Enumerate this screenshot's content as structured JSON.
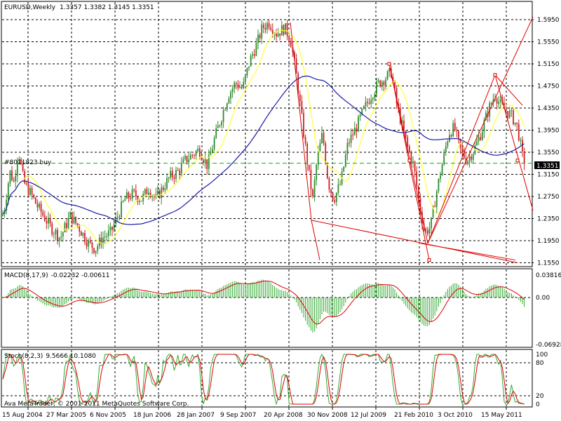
{
  "main": {
    "symbol": "EURUSD,Weekly",
    "ohlc": "1.3357 1.3382 1.3145 1.3351",
    "order_label": "#8011823 buy",
    "price_tag": "1.3351",
    "price_axis": [
      "1.5950",
      "1.5550",
      "1.5150",
      "1.4750",
      "1.4350",
      "1.3950",
      "1.3550",
      "1.3150",
      "1.2750",
      "1.2350",
      "1.1950",
      "1.1550"
    ]
  },
  "macd": {
    "title": "MACD(8,17,9)",
    "values": "-0.02232 -0.00611",
    "axis": [
      "0.03816",
      "0.00",
      "-0.06928"
    ]
  },
  "stoch": {
    "title": "Stoch(8,2,3)",
    "values": "9.5666 10.1080",
    "axis": [
      "100",
      "80",
      "20",
      "0"
    ]
  },
  "footer": {
    "copyright": "Ava MetaTrader, © 2001-2011 MetaQuotes Software Corp."
  },
  "time_axis": [
    "15 Aug 2004",
    "27 Mar 2005",
    "6 Nov 2005",
    "18 Jun 2006",
    "28 Jan 2007",
    "9 Sep 2007",
    "20 Apr 2008",
    "30 Nov 2008",
    "12 Jul 2009",
    "21 Feb 2010",
    "3 Oct 2010",
    "15 May 2011"
  ],
  "colors": {
    "up_candle": "#2e8b2e",
    "down_candle": "#cc2222",
    "ma_fast": "#ffff33",
    "ma_slow": "#1a1aa8",
    "trend_lines": "#dd0000",
    "order_line": "#00bb00",
    "macd_hist": "#33aa33",
    "macd_signal": "#dd0000",
    "stoch_main": "#33aa33",
    "stoch_signal": "#dd0000"
  }
}
